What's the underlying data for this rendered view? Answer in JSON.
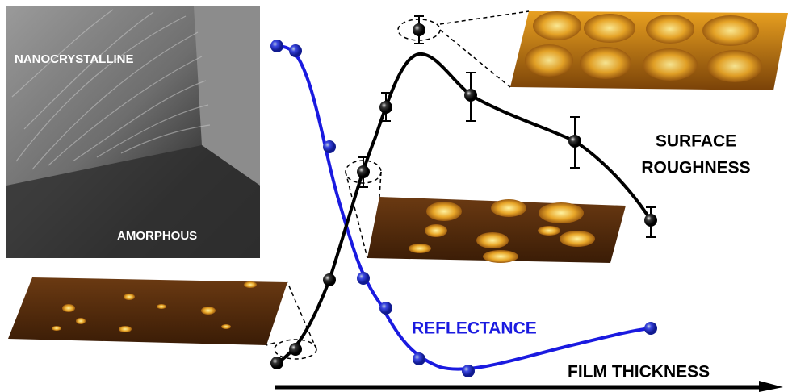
{
  "labels": {
    "nanocrystalline": "NANOCRYSTALLINE",
    "amorphous": "AMORPHOUS",
    "surface_roughness": [
      "SURFACE",
      "ROUGHNESS"
    ],
    "reflectance": "REFLECTANCE",
    "film_thickness": "FILM THICKNESS"
  }
}
